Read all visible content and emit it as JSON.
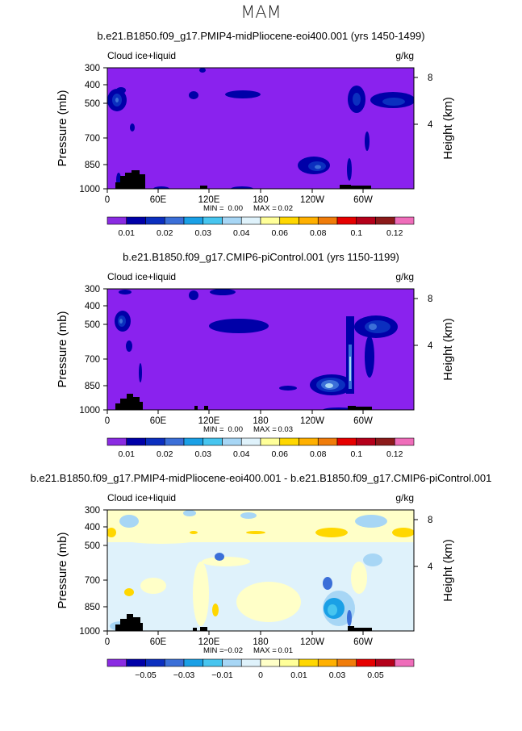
{
  "page": {
    "main_title": "MAM"
  },
  "chart_data": [
    {
      "type": "contour",
      "title": "b.e21.B1850.f09_g17.PMIP4-midPliocene-eoi400.001 (yrs 1450-1499)",
      "left_label": "Cloud ice+liquid",
      "units": "g/kg",
      "ylabel": "Pressure (mb)",
      "y2label": "Height (km)",
      "x_ticks": [
        "0",
        "60E",
        "120E",
        "180",
        "120W",
        "60W"
      ],
      "y_ticks": [
        "300",
        "400",
        "500",
        "700",
        "850",
        "1000"
      ],
      "y2_ticks": [
        "8",
        "4"
      ],
      "stats": {
        "min_label": "MIN =",
        "min": "0.00",
        "max_label": "MAX =",
        "max": "0.02"
      },
      "colorbar_levels": [
        "0.01",
        "0.02",
        "0.03",
        "0.04",
        "0.06",
        "0.08",
        "0.1",
        "0.12"
      ],
      "colorbar_colors": [
        "#8a2be2",
        "#0000a8",
        "#0b2fbf",
        "#3b6fd8",
        "#1aa0e6",
        "#47c5ef",
        "#a7d6f5",
        "#dff2fb",
        "#ffff99",
        "#ffd700",
        "#ffb000",
        "#f07c0a",
        "#e60000",
        "#b4001a",
        "#8b1a1a",
        "#ef6dba"
      ],
      "background_color": "#8a22ee"
    },
    {
      "type": "contour",
      "title": "b.e21.B1850.f09_g17.CMIP6-piControl.001 (yrs 1150-1199)",
      "left_label": "Cloud ice+liquid",
      "units": "g/kg",
      "ylabel": "Pressure (mb)",
      "y2label": "Height (km)",
      "x_ticks": [
        "0",
        "60E",
        "120E",
        "180",
        "120W",
        "60W"
      ],
      "y_ticks": [
        "300",
        "400",
        "500",
        "700",
        "850",
        "1000"
      ],
      "y2_ticks": [
        "8",
        "4"
      ],
      "stats": {
        "min_label": "MIN =",
        "min": "0.00",
        "max_label": "MAX =",
        "max": "0.03"
      },
      "colorbar_levels": [
        "0.01",
        "0.02",
        "0.03",
        "0.04",
        "0.06",
        "0.08",
        "0.1",
        "0.12"
      ],
      "colorbar_colors": [
        "#8a2be2",
        "#0000a8",
        "#0b2fbf",
        "#3b6fd8",
        "#1aa0e6",
        "#47c5ef",
        "#a7d6f5",
        "#dff2fb",
        "#ffff99",
        "#ffd700",
        "#ffb000",
        "#f07c0a",
        "#e60000",
        "#b4001a",
        "#8b1a1a",
        "#ef6dba"
      ],
      "background_color": "#8a22ee"
    },
    {
      "type": "contour",
      "title": "b.e21.B1850.f09_g17.PMIP4-midPliocene-eoi400.001 - b.e21.B1850.f09_g17.CMIP6-piControl.001",
      "left_label": "Cloud ice+liquid",
      "units": "g/kg",
      "ylabel": "Pressure (mb)",
      "y2label": "Height (km)",
      "x_ticks": [
        "0",
        "60E",
        "120E",
        "180",
        "120W",
        "60W"
      ],
      "y_ticks": [
        "300",
        "400",
        "500",
        "700",
        "850",
        "1000"
      ],
      "y2_ticks": [
        "8",
        "4"
      ],
      "stats": {
        "min_label": "MIN =",
        "min": "−0.02",
        "max_label": "MAX =",
        "max": "0.01"
      },
      "colorbar_levels": [
        "−0.05",
        "−0.03",
        "−0.01",
        "0",
        "0.01",
        "0.03",
        "0.05"
      ],
      "colorbar_colors": [
        "#8a2be2",
        "#0000a8",
        "#0b2fbf",
        "#3b6fd8",
        "#1aa0e6",
        "#47c5ef",
        "#a7d6f5",
        "#dff2fb",
        "#ffffc8",
        "#ffff99",
        "#ffd700",
        "#ffb000",
        "#f07c0a",
        "#e60000",
        "#b4001a",
        "#ef6dba"
      ],
      "background_color": "#dff2fb"
    }
  ]
}
